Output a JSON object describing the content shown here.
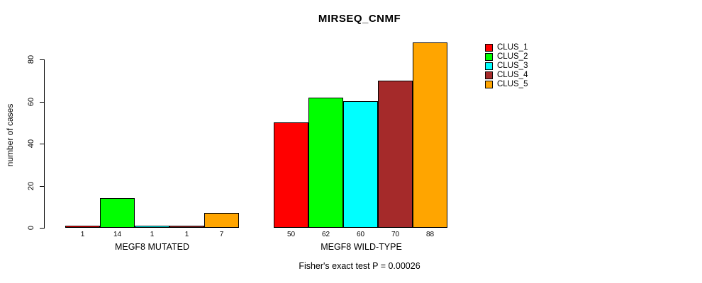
{
  "chart": {
    "title": "MIRSEQ_CNMF",
    "ylabel": "number of cases",
    "footnote": "Fisher's exact test P = 0.00026"
  },
  "chart_data": {
    "type": "bar",
    "title": "MIRSEQ_CNMF",
    "xlabel": "",
    "ylabel": "number of cases",
    "ylim": [
      0,
      80
    ],
    "yticks": [
      0,
      20,
      40,
      60,
      80
    ],
    "grid": false,
    "legend_position": "right",
    "categories": [
      "MEGF8 MUTATED",
      "MEGF8 WILD-TYPE"
    ],
    "series": [
      {
        "name": "CLUS_1",
        "color": "#FF0000",
        "values": [
          1,
          50
        ]
      },
      {
        "name": "CLUS_2",
        "color": "#00FF00",
        "values": [
          14,
          62
        ]
      },
      {
        "name": "CLUS_3",
        "color": "#00FFFF",
        "values": [
          1,
          60
        ]
      },
      {
        "name": "CLUS_4",
        "color": "#A52A2A",
        "values": [
          1,
          70
        ]
      },
      {
        "name": "CLUS_5",
        "color": "#FFA500",
        "values": [
          7,
          88
        ]
      }
    ],
    "groups": [
      {
        "label": "MEGF8 MUTATED",
        "values": [
          1,
          14,
          1,
          1,
          7
        ]
      },
      {
        "label": "MEGF8 WILD-TYPE",
        "values": [
          50,
          62,
          60,
          70,
          88
        ]
      }
    ],
    "bar_value_labels": [
      [
        "1",
        "14",
        "1",
        "1",
        "7"
      ],
      [
        "50",
        "62",
        "60",
        "70",
        "88"
      ]
    ],
    "legend": {
      "entries": [
        {
          "label": "CLUS_1",
          "color": "#FF0000"
        },
        {
          "label": "CLUS_2",
          "color": "#00FF00"
        },
        {
          "label": "CLUS_3",
          "color": "#00FFFF"
        },
        {
          "label": "CLUS_4",
          "color": "#A52A2A"
        },
        {
          "label": "CLUS_5",
          "color": "#FFA500"
        }
      ]
    },
    "annotation": "Fisher's exact test P = 0.00026"
  }
}
